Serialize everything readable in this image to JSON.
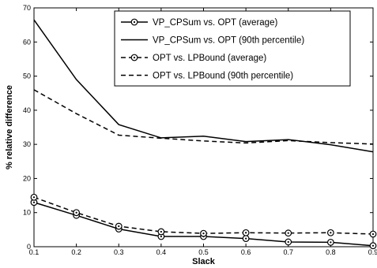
{
  "chart_data": {
    "type": "line",
    "xlabel": "Slack",
    "ylabel": "% relative difference",
    "xlim": [
      0.1,
      0.9
    ],
    "ylim": [
      0,
      70
    ],
    "xticks": [
      "0.1",
      "0.2",
      "0.3",
      "0.4",
      "0.5",
      "0.6",
      "0.7",
      "0.8",
      "0.9"
    ],
    "yticks": [
      "0",
      "10",
      "20",
      "30",
      "40",
      "50",
      "60",
      "70"
    ],
    "grid": false,
    "legend_position": "top-right",
    "x": [
      0.1,
      0.2,
      0.3,
      0.4,
      0.5,
      0.6,
      0.7,
      0.8,
      0.9
    ],
    "series": [
      {
        "name": "VP_CPSum vs. OPT (average)",
        "values": [
          13.0,
          9.2,
          5.2,
          3.0,
          3.0,
          2.4,
          1.4,
          1.3,
          0.3
        ],
        "line_style": "solid",
        "marker": "circle"
      },
      {
        "name": "VP_CPSum vs. OPT (90th percentile)",
        "values": [
          66.5,
          49.0,
          35.8,
          31.9,
          32.4,
          30.8,
          31.4,
          29.9,
          27.8
        ],
        "line_style": "solid",
        "marker": "none"
      },
      {
        "name": "OPT vs. LPBound (average)",
        "values": [
          14.5,
          10.0,
          6.0,
          4.4,
          3.9,
          4.1,
          4.0,
          4.1,
          3.7
        ],
        "line_style": "dashed",
        "marker": "circle"
      },
      {
        "name": "OPT vs. LPBound (90th percentile)",
        "values": [
          46.0,
          39.0,
          32.7,
          31.8,
          31.0,
          30.4,
          31.1,
          30.5,
          30.1
        ],
        "line_style": "dashed",
        "marker": "none"
      }
    ]
  }
}
